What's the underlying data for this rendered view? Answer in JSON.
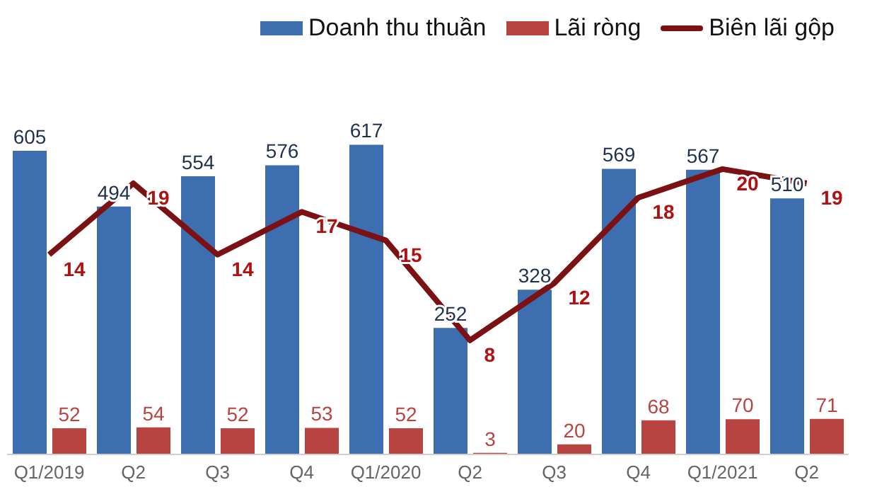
{
  "chart_data": {
    "type": "bar",
    "categories": [
      "Q1/2019",
      "Q2",
      "Q3",
      "Q4",
      "Q1/2020",
      "Q2",
      "Q3",
      "Q4",
      "Q1/2021",
      "Q2"
    ],
    "series": [
      {
        "name": "Doanh thu thuần",
        "color": "#3d6eb0",
        "values": [
          605,
          494,
          554,
          576,
          617,
          252,
          328,
          569,
          567,
          510
        ]
      },
      {
        "name": "Lãi ròng",
        "color": "#b84442",
        "values": [
          52,
          54,
          52,
          53,
          52,
          3,
          20,
          68,
          70,
          71
        ]
      },
      {
        "name": "Biên lãi gộp",
        "type": "line",
        "axis": "y2",
        "color": "#7b1113",
        "values": [
          14,
          19,
          14,
          17,
          15,
          8,
          12,
          18,
          20,
          19
        ]
      }
    ],
    "relative": false,
    "data_labels": true,
    "legend": "top right",
    "marker": "none"
  }
}
